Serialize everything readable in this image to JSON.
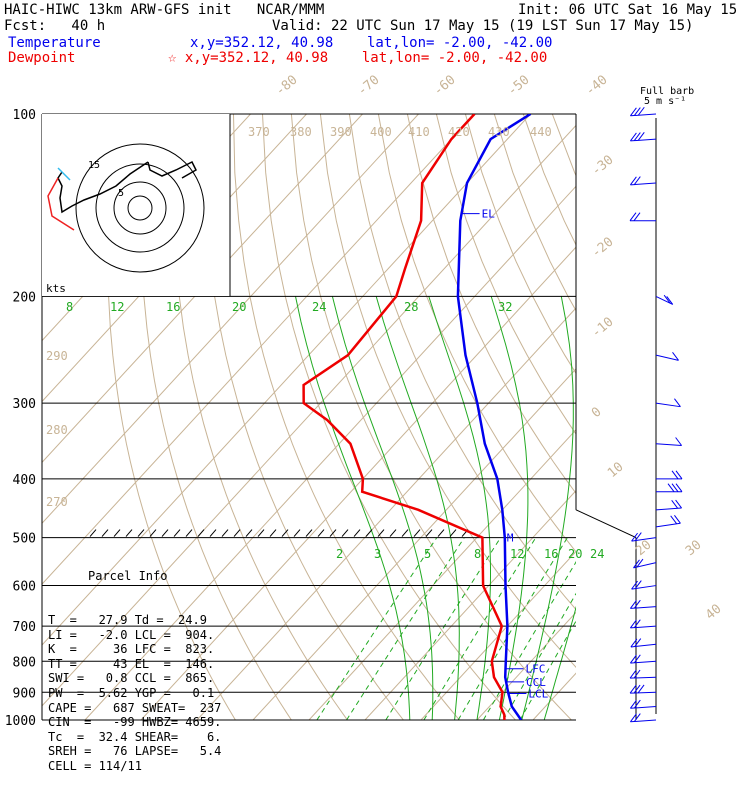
{
  "header": {
    "model": "HAIC-HIWC 13km ARW-GFS init   NCAR/MMM",
    "init": "Init: 06 UTC Sat 16 May 15",
    "fcst": "Fcst:   40 h",
    "valid": "Valid: 22 UTC Sun 17 May 15 (19 LST Sun 17 May 15)",
    "temp_label": "Temperature",
    "temp_loc": "x,y=352.12, 40.98    lat,lon= -2.00, -42.00",
    "dew_label": "Dewpoint",
    "dew_loc": "☆ x,y=352.12, 40.98    lat,lon= -2.00, -42.00",
    "barb_key_1": "Full barb",
    "barb_key_2": "5 m s⁻¹"
  },
  "colors": {
    "temperature": "#0000ee",
    "dewpoint": "#ee0000",
    "adiabat": "#c8b496",
    "mixing_ratio": "#22aa22",
    "isobar": "#000000"
  },
  "parcel_info": {
    "title": "Parcel Info",
    "rows": [
      "T  =   27.9 Td =  24.9",
      "LI =   -2.0 LCL =  904.",
      "K  =     36 LFC =  823.",
      "TT =     43 EL  =  146.",
      "SWI =   0.8 CCL =  865.",
      "PW  =  5.62 YGP =   0.1",
      "CAPE =   687 SWEAT=  237",
      "CIN  =   -99 HWBZ= 4659.",
      "Tc  =  32.4 SHEAR=    6.",
      "SREH =   76 LAPSE=   5.4",
      "CELL = 114/11"
    ]
  },
  "hodograph": {
    "units": "kts",
    "ring_labels": [
      "5",
      "15"
    ]
  },
  "chart_data": {
    "type": "line",
    "title": "",
    "ylabel": "",
    "y_scale": "log-pressure",
    "ylim": [
      1000,
      100
    ],
    "pressure_ticks": [
      "100",
      "200",
      "300",
      "400",
      "500",
      "600",
      "700",
      "800",
      "900",
      "1000"
    ],
    "isotherm_labels": [
      "-80",
      "-70",
      "-60",
      "-50",
      "-40",
      "-30",
      "-20",
      "-10",
      "0",
      "10",
      "20",
      "30",
      "40"
    ],
    "theta_labels": [
      "370",
      "380",
      "390",
      "400",
      "410",
      "420",
      "430",
      "440",
      "290",
      "280",
      "270"
    ],
    "mixing_ratio_labels_upper": [
      "8",
      "12",
      "16",
      "20",
      "24",
      "28",
      "32"
    ],
    "mixing_ratio_labels_lower": [
      "2",
      "3",
      "5",
      "8",
      "12",
      "16",
      "20",
      "24"
    ],
    "levels": [
      {
        "name": "LCL",
        "p": 904
      },
      {
        "name": "CCL",
        "p": 865
      },
      {
        "name": "LFC",
        "p": 823
      },
      {
        "name": "EL",
        "p": 146
      },
      {
        "name": "M",
        "p": 500
      }
    ],
    "series": [
      {
        "name": "Temperature",
        "points": [
          [
            1000,
            27.9
          ],
          [
            950,
            24
          ],
          [
            900,
            21
          ],
          [
            850,
            18
          ],
          [
            800,
            15.5
          ],
          [
            700,
            10
          ],
          [
            600,
            3
          ],
          [
            500,
            -5
          ],
          [
            450,
            -10
          ],
          [
            400,
            -16
          ],
          [
            350,
            -24
          ],
          [
            300,
            -32
          ],
          [
            250,
            -42
          ],
          [
            200,
            -53
          ],
          [
            150,
            -65
          ],
          [
            130,
            -70
          ],
          [
            110,
            -73
          ],
          [
            100,
            -70
          ]
        ]
      },
      {
        "name": "Dewpoint",
        "points": [
          [
            1000,
            24.9
          ],
          [
            980,
            24
          ],
          [
            950,
            22
          ],
          [
            900,
            20
          ],
          [
            850,
            16
          ],
          [
            800,
            13
          ],
          [
            700,
            9
          ],
          [
            600,
            -1
          ],
          [
            500,
            -9
          ],
          [
            450,
            -25
          ],
          [
            420,
            -38
          ],
          [
            400,
            -40
          ],
          [
            350,
            -48
          ],
          [
            320,
            -56
          ],
          [
            300,
            -63
          ],
          [
            280,
            -66
          ],
          [
            250,
            -63
          ],
          [
            200,
            -64
          ],
          [
            180,
            -67
          ],
          [
            150,
            -72
          ],
          [
            130,
            -78
          ],
          [
            110,
            -80
          ],
          [
            100,
            -80
          ]
        ]
      }
    ],
    "wind_profile": [
      [
        1000,
        10,
        80
      ],
      [
        950,
        12,
        80
      ],
      [
        900,
        14,
        85
      ],
      [
        850,
        12,
        85
      ],
      [
        800,
        10,
        80
      ],
      [
        750,
        8,
        75
      ],
      [
        700,
        8,
        80
      ],
      [
        650,
        9,
        80
      ],
      [
        600,
        9,
        70
      ],
      [
        550,
        8,
        60
      ],
      [
        500,
        8,
        70
      ],
      [
        480,
        10,
        250
      ],
      [
        450,
        12,
        260
      ],
      [
        420,
        14,
        270
      ],
      [
        400,
        10,
        270
      ],
      [
        350,
        6,
        280
      ],
      [
        300,
        5,
        290
      ],
      [
        250,
        6,
        300
      ],
      [
        200,
        8,
        320
      ],
      [
        150,
        10,
        90
      ],
      [
        130,
        12,
        80
      ],
      [
        110,
        14,
        80
      ],
      [
        100,
        14,
        80
      ]
    ]
  }
}
